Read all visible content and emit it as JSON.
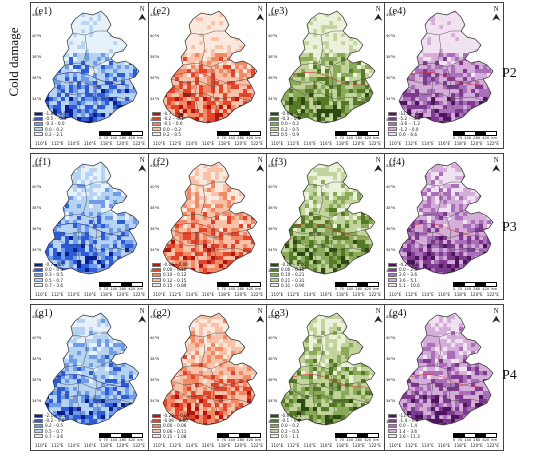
{
  "figure_title": "Cold damage",
  "row_labels": [
    "P2",
    "P3",
    "P4"
  ],
  "x_ticks": [
    "110°E",
    "112°E",
    "114°E",
    "116°E",
    "118°E",
    "120°E",
    "122°E"
  ],
  "y_ticks": [
    "42°N",
    "40°N",
    "38°N",
    "36°N",
    "34°N",
    "32°N"
  ],
  "north_symbol": "N",
  "scale_labels": [
    "0",
    "70",
    "140",
    "280",
    "420"
  ],
  "scale_unit": "km",
  "panels": [
    {
      "label": "(e1)",
      "palette": "blue",
      "legend": [
        "-1.8 – -0.5",
        "-0.5 – -0.3",
        "-0.3 – 0.0",
        "0.0 – 0.2",
        "0.2 – 2.1"
      ]
    },
    {
      "label": "(e2)",
      "palette": "red",
      "legend": [
        "-0.7 – -0.2",
        "-0.2 – -0.1",
        "-0.1 – 0.0",
        "0.0 – 0.2",
        "0.2 – 0.5"
      ]
    },
    {
      "label": "(e3)",
      "palette": "green",
      "legend": [
        "-0.6 – -0.3",
        "-0.3 – 0.0",
        "0.0 – 0.2",
        "0.2 – 0.5",
        "0.5 – 0.9"
      ]
    },
    {
      "label": "(e4)",
      "palette": "purple",
      "legend": [
        "-11.0 – -5.2",
        "-5.2 – -3.6",
        "-3.6 – -1.2",
        "-1.2 – 0.0",
        "0.0 – 6.6"
      ]
    },
    {
      "label": "(f1)",
      "palette": "blue",
      "legend": [
        "-0.7 – 0.0",
        "0.0 – 0.3",
        "0.3 – 0.5",
        "0.5 – 0.7",
        "0.7 – 3.6"
      ]
    },
    {
      "label": "(f2)",
      "palette": "red",
      "legend": [
        "-0.06 – 0.00",
        "0.00 – 0.10",
        "0.10 – 0.12",
        "0.12 – 0.15",
        "0.15 – 0.89"
      ]
    },
    {
      "label": "(f3)",
      "palette": "green",
      "legend": [
        "-0.12 – 0.00",
        "0.00 – 0.10",
        "0.10 – 0.21",
        "0.21 – 0.31",
        "0.31 – 0.90"
      ]
    },
    {
      "label": "(f4)",
      "palette": "purple",
      "legend": [
        "-4.2 – 0.0",
        "0.0 – 2.0",
        "2.0 – 3.6",
        "3.6 – 5.1",
        "5.1 – 10.6"
      ]
    },
    {
      "label": "(g1)",
      "palette": "blue",
      "legend": [
        "-2.1 – -0.2",
        "-0.2 – 0.2",
        "0.2 – 0.5",
        "0.5 – 0.7",
        "0.7 – 3.6"
      ]
    },
    {
      "label": "(g2)",
      "palette": "red",
      "legend": [
        "-0.28 – -0.09",
        "-0.09 – 0.00",
        "0.00 – 0.06",
        "0.06 – 0.11",
        "0.11 – 1.08"
      ]
    },
    {
      "label": "(g3)",
      "palette": "green",
      "legend": [
        "-0.6 – -0.1",
        "-0.1 – 0.0",
        "0.0 – 0.2",
        "0.2 – 0.5",
        "0.5 – 1.1"
      ]
    },
    {
      "label": "(g4)",
      "palette": "purple",
      "legend": [
        "-13.7 – -1.4",
        "-1.4 – 0.0",
        "0.0 – 1.4",
        "1.4 – 3.6",
        "3.6 – 11.3"
      ]
    }
  ],
  "palettes": {
    "blue": [
      "#0b1f8f",
      "#2e5bd6",
      "#6f9be8",
      "#b7d3f2",
      "#e6f1fb"
    ],
    "red": [
      "#b0160e",
      "#e2452c",
      "#f08a66",
      "#f7c2a8",
      "#fbe9dd"
    ],
    "green": [
      "#2d4a12",
      "#557a26",
      "#8aa95a",
      "#c2d49c",
      "#ecf1dc"
    ],
    "purple": [
      "#4e1460",
      "#7d3a8f",
      "#a96fb8",
      "#d4aed9",
      "#f1e2f1"
    ]
  }
}
